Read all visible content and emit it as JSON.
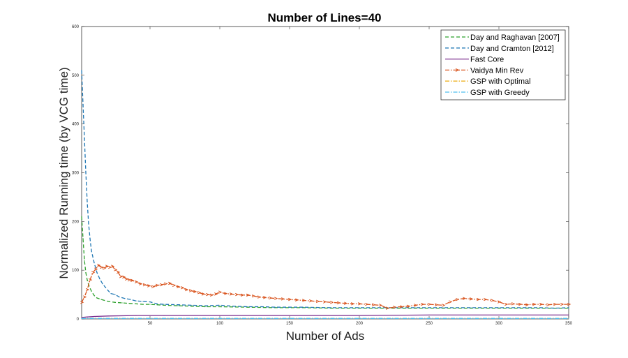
{
  "chart_data": {
    "type": "line",
    "title": "Number of Lines=40",
    "xlabel": "Number of Ads",
    "ylabel": "Normalized Running time (by VCG time)",
    "xlim": [
      1,
      350
    ],
    "ylim": [
      0,
      600
    ],
    "xticks": [
      50,
      100,
      150,
      200,
      250,
      300,
      350
    ],
    "yticks": [
      0,
      100,
      200,
      300,
      400,
      500,
      600
    ],
    "grid": false,
    "legend_position": "top-right",
    "series": [
      {
        "name": "Day and Raghavan [2007]",
        "color": "#2ca02c",
        "style": "dashed",
        "x": [
          1,
          2,
          3,
          4,
          5,
          6,
          8,
          10,
          12,
          15,
          20,
          25,
          30,
          35,
          40,
          45,
          50,
          55,
          60,
          70,
          80,
          90,
          100,
          120,
          140,
          160,
          180,
          200,
          220,
          240,
          260,
          280,
          300,
          320,
          340,
          350
        ],
        "values": [
          210,
          165,
          120,
          95,
          80,
          70,
          57,
          48,
          43,
          40,
          36,
          34,
          33,
          32,
          31,
          30,
          30,
          29,
          28,
          27,
          26,
          25,
          25,
          24,
          23,
          23,
          22,
          22,
          22,
          22,
          22,
          22,
          22,
          22,
          22,
          22
        ]
      },
      {
        "name": "Day and Cramton [2012]",
        "color": "#1f77b4",
        "style": "dashed",
        "x": [
          1,
          2,
          3,
          4,
          5,
          6,
          7,
          8,
          10,
          12,
          14,
          16,
          18,
          20,
          22,
          25,
          28,
          32,
          36,
          40,
          45,
          50,
          55,
          60,
          70,
          80,
          90,
          100,
          110,
          120,
          130,
          140,
          150,
          160,
          180,
          200,
          220,
          240,
          260,
          280,
          300,
          310,
          320,
          330,
          340,
          350
        ],
        "values": [
          510,
          440,
          370,
          300,
          240,
          195,
          165,
          140,
          115,
          95,
          82,
          72,
          65,
          58,
          52,
          50,
          45,
          42,
          40,
          37,
          36,
          35,
          31,
          30,
          29,
          28,
          27,
          28,
          26,
          25,
          25,
          24,
          24,
          24,
          23,
          23,
          23,
          23,
          23,
          23,
          23,
          23,
          23,
          23,
          22,
          23
        ]
      },
      {
        "name": "Fast Core",
        "color": "#7b2d8e",
        "style": "solid",
        "x": [
          1,
          5,
          10,
          20,
          40,
          60,
          100,
          150,
          200,
          250,
          300,
          350
        ],
        "values": [
          3,
          4,
          5,
          6,
          7,
          7,
          7,
          7,
          7,
          8,
          8,
          8
        ]
      },
      {
        "name": "Vaidya Min Rev",
        "color": "#d9541e",
        "style": "dashdot-marker",
        "x": [
          1,
          3,
          5,
          7,
          9,
          11,
          13,
          15,
          17,
          19,
          21,
          23,
          25,
          27,
          29,
          31,
          33,
          35,
          37,
          40,
          43,
          46,
          49,
          52,
          55,
          58,
          61,
          64,
          67,
          70,
          73,
          76,
          79,
          82,
          85,
          88,
          91,
          94,
          97,
          100,
          104,
          108,
          112,
          116,
          120,
          124,
          128,
          132,
          136,
          140,
          145,
          150,
          155,
          160,
          165,
          170,
          175,
          180,
          185,
          190,
          195,
          200,
          205,
          210,
          215,
          220,
          225,
          230,
          235,
          240,
          245,
          250,
          255,
          260,
          265,
          270,
          275,
          280,
          285,
          290,
          295,
          300,
          305,
          310,
          315,
          320,
          325,
          330,
          335,
          340,
          345,
          350
        ],
        "values": [
          34,
          45,
          60,
          80,
          95,
          102,
          110,
          106,
          104,
          108,
          106,
          108,
          101,
          96,
          87,
          86,
          82,
          80,
          79,
          76,
          72,
          70,
          68,
          66,
          69,
          70,
          72,
          73,
          69,
          66,
          64,
          60,
          58,
          56,
          54,
          51,
          50,
          49,
          51,
          55,
          52,
          51,
          50,
          49,
          49,
          47,
          45,
          44,
          43,
          42,
          41,
          40,
          39,
          38,
          37,
          36,
          35,
          34,
          33,
          32,
          31,
          31,
          30,
          29,
          28,
          22,
          24,
          25,
          26,
          28,
          30,
          30,
          29,
          28,
          35,
          40,
          42,
          41,
          40,
          40,
          38,
          35,
          30,
          31,
          30,
          29,
          30,
          30,
          29,
          30,
          30,
          30
        ]
      },
      {
        "name": "GSP with Optimal",
        "color": "#edb120",
        "style": "dashdot",
        "x": [
          1,
          50,
          100,
          150,
          200,
          250,
          300,
          350
        ],
        "values": [
          1,
          1,
          1,
          1,
          1,
          1,
          1,
          1
        ]
      },
      {
        "name": "GSP with Greedy",
        "color": "#4dbeee",
        "style": "dashdot",
        "x": [
          1,
          50,
          100,
          150,
          200,
          250,
          300,
          350
        ],
        "values": [
          1,
          1,
          1,
          1,
          1,
          1,
          1,
          1
        ]
      }
    ]
  }
}
